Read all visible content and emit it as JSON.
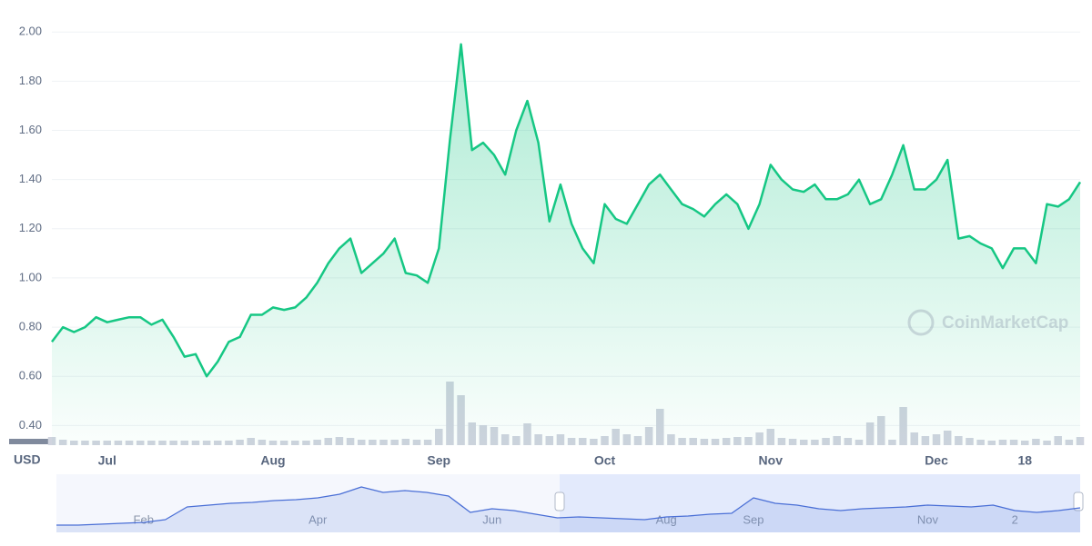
{
  "chart_data": [
    {
      "type": "line",
      "currency": "USD",
      "watermark": "CoinMarketCap",
      "categories": [
        null,
        null,
        null,
        null,
        null,
        "Jul",
        null,
        null,
        null,
        null,
        null,
        null,
        null,
        null,
        null,
        null,
        null,
        null,
        null,
        null,
        "Aug",
        null,
        null,
        null,
        null,
        null,
        null,
        null,
        null,
        null,
        null,
        null,
        null,
        null,
        null,
        "Sep",
        null,
        null,
        null,
        null,
        null,
        null,
        null,
        null,
        null,
        null,
        null,
        null,
        null,
        null,
        "Oct",
        null,
        null,
        null,
        null,
        null,
        null,
        null,
        null,
        null,
        null,
        null,
        null,
        null,
        null,
        "Nov",
        null,
        null,
        null,
        null,
        null,
        null,
        null,
        null,
        null,
        null,
        null,
        null,
        null,
        null,
        "Dec",
        null,
        null,
        null,
        null,
        null,
        null,
        null,
        "18",
        null,
        null,
        null,
        null,
        null
      ],
      "series": [
        {
          "name": "Price",
          "type": "line",
          "color": "#16c784",
          "values": [
            0.74,
            0.8,
            0.78,
            0.8,
            0.84,
            0.82,
            0.83,
            0.84,
            0.84,
            0.81,
            0.83,
            0.76,
            0.68,
            0.69,
            0.6,
            0.66,
            0.74,
            0.76,
            0.85,
            0.85,
            0.88,
            0.87,
            0.88,
            0.92,
            0.98,
            1.06,
            1.12,
            1.16,
            1.02,
            1.06,
            1.1,
            1.16,
            1.02,
            1.01,
            0.98,
            1.12,
            1.56,
            1.95,
            1.52,
            1.55,
            1.5,
            1.42,
            1.6,
            1.72,
            1.55,
            1.23,
            1.38,
            1.22,
            1.12,
            1.06,
            1.3,
            1.24,
            1.22,
            1.3,
            1.38,
            1.42,
            1.36,
            1.3,
            1.28,
            1.25,
            1.3,
            1.34,
            1.3,
            1.2,
            1.3,
            1.46,
            1.4,
            1.36,
            1.35,
            1.38,
            1.32,
            1.32,
            1.34,
            1.4,
            1.3,
            1.32,
            1.42,
            1.54,
            1.36,
            1.36,
            1.4,
            1.48,
            1.16,
            1.17,
            1.14,
            1.12,
            1.04,
            1.12,
            1.12,
            1.06,
            1.3,
            1.29,
            1.32,
            1.39
          ]
        },
        {
          "name": "Volume",
          "type": "bar",
          "axis": "y2",
          "color": "#cfd3de",
          "values": [
            9,
            6,
            5,
            5,
            5,
            5,
            5,
            5,
            5,
            5,
            5,
            5,
            5,
            5,
            5,
            5,
            5,
            6,
            8,
            6,
            5,
            5,
            5,
            5,
            6,
            8,
            9,
            8,
            6,
            6,
            6,
            6,
            7,
            6,
            6,
            18,
            70,
            55,
            25,
            22,
            20,
            12,
            10,
            24,
            12,
            10,
            12,
            8,
            8,
            7,
            10,
            18,
            12,
            10,
            20,
            40,
            12,
            8,
            8,
            7,
            7,
            8,
            9,
            9,
            14,
            18,
            8,
            7,
            6,
            6,
            8,
            10,
            8,
            6,
            25,
            32,
            6,
            42,
            14,
            10,
            12,
            16,
            10,
            8,
            6,
            5,
            6,
            6,
            5,
            7,
            5,
            10,
            6,
            9
          ]
        }
      ],
      "ylim": [
        0.32,
        2.06
      ],
      "yticks": [
        {
          "value": 0.4,
          "label": "0.40"
        },
        {
          "value": 0.6,
          "label": "0.60"
        },
        {
          "value": 0.8,
          "label": "0.80"
        },
        {
          "value": 1.0,
          "label": "1.00"
        },
        {
          "value": 1.2,
          "label": "1.20"
        },
        {
          "value": 1.4,
          "label": "1.40"
        },
        {
          "value": 1.6,
          "label": "1.60"
        },
        {
          "value": 1.8,
          "label": "1.80"
        },
        {
          "value": 2.0,
          "label": "2.00"
        }
      ],
      "y2lim": [
        0,
        100
      ],
      "grid": true
    },
    {
      "type": "line",
      "categories": [
        null,
        null,
        null,
        null,
        "Feb",
        null,
        null,
        null,
        null,
        null,
        null,
        null,
        "Apr",
        null,
        null,
        null,
        null,
        null,
        null,
        null,
        "Jun",
        null,
        null,
        null,
        null,
        null,
        null,
        null,
        "Aug",
        null,
        null,
        null,
        "Sep",
        null,
        null,
        null,
        null,
        null,
        null,
        null,
        "Nov",
        null,
        null,
        null,
        "2",
        null,
        null,
        null
      ],
      "series": [
        {
          "name": "Navigator",
          "type": "line",
          "color": "#4a6fd6",
          "values": [
            8,
            8,
            9,
            10,
            11,
            14,
            28,
            30,
            32,
            33,
            35,
            36,
            38,
            42,
            50,
            44,
            46,
            44,
            40,
            22,
            26,
            24,
            20,
            16,
            17,
            16,
            15,
            14,
            17,
            18,
            20,
            21,
            38,
            32,
            30,
            26,
            24,
            26,
            27,
            28,
            30,
            29,
            28,
            30,
            24,
            22,
            24,
            27
          ]
        }
      ],
      "ylim": [
        0,
        64
      ],
      "grid": false
    }
  ]
}
